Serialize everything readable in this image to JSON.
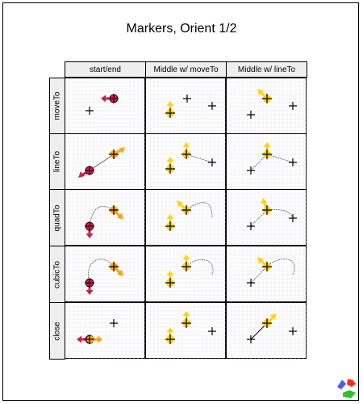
{
  "title": "Markers, Orient 1/2",
  "columns": [
    "start/end",
    "Middle w/ moveTo",
    "Middle w/ lineTo"
  ],
  "rows": [
    "moveTo",
    "lineTo",
    "quadTo",
    "cubicTo",
    "close"
  ],
  "colors": {
    "start_end_marker": "#cc1f4d",
    "end_marker": "#f7a21b",
    "middle_marker": "#ffd21a",
    "grid": "#e6e6f0",
    "header_bg": "#eeeeee"
  },
  "logo_icon": "tricolor-blob-icon"
}
